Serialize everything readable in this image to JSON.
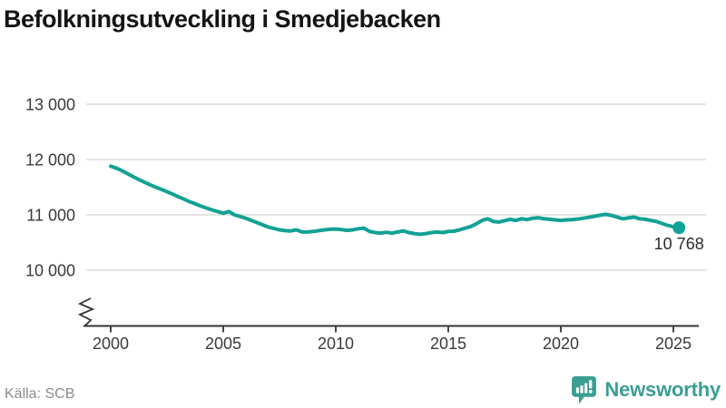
{
  "title": "Befolkningsutveckling i Smedjebacken",
  "source": "Källa: SCB",
  "branding": {
    "name": "Newsworthy",
    "icon": "newsworthy-speech-bubble-bar-chart-icon",
    "color": "#3b9e92"
  },
  "colors": {
    "background": "#ffffff",
    "line": "#12a195",
    "grid": "#dcdcdc",
    "axis": "#333333",
    "tick_label": "#3a3a3a",
    "title": "#141414",
    "source": "#8c8c8c",
    "annotation": "#2b2b2b"
  },
  "chart_data": {
    "type": "line",
    "title": "Befolkningsutveckling i Smedjebacken",
    "xlabel": "",
    "ylabel": "",
    "grid": "horizontal",
    "legend": "none",
    "y_axis_break": true,
    "x_range": [
      1998.9,
      2026.3
    ],
    "y_ticks": {
      "values": [
        13000,
        12000,
        11000,
        10000
      ],
      "labels": [
        "13 000",
        "12 000",
        "11 000",
        "10 000"
      ]
    },
    "x_ticks": {
      "values": [
        2000,
        2005,
        2010,
        2015,
        2020,
        2025
      ],
      "labels": [
        "2000",
        "2005",
        "2010",
        "2015",
        "2020",
        "2025"
      ]
    },
    "series": [
      {
        "name": "Befolkning",
        "x_start": 2000.0,
        "x_step": 0.25,
        "values": [
          11880,
          11845,
          11800,
          11745,
          11690,
          11640,
          11590,
          11545,
          11500,
          11460,
          11420,
          11375,
          11330,
          11285,
          11240,
          11200,
          11160,
          11125,
          11090,
          11060,
          11030,
          11060,
          11000,
          10970,
          10940,
          10900,
          10860,
          10820,
          10780,
          10755,
          10730,
          10715,
          10710,
          10730,
          10690,
          10690,
          10700,
          10715,
          10730,
          10740,
          10745,
          10735,
          10720,
          10730,
          10750,
          10760,
          10700,
          10680,
          10670,
          10685,
          10670,
          10690,
          10710,
          10680,
          10660,
          10650,
          10660,
          10680,
          10690,
          10680,
          10700,
          10705,
          10730,
          10760,
          10790,
          10840,
          10900,
          10930,
          10880,
          10870,
          10895,
          10920,
          10900,
          10930,
          10915,
          10940,
          10950,
          10930,
          10920,
          10910,
          10900,
          10910,
          10915,
          10925,
          10940,
          10955,
          10975,
          10995,
          11010,
          10990,
          10960,
          10930,
          10945,
          10960,
          10930,
          10920,
          10900,
          10880,
          10845,
          10810,
          10785,
          10768
        ]
      }
    ],
    "end_annotation": {
      "x": 2025.25,
      "y": 10768,
      "label": "10 768"
    }
  }
}
